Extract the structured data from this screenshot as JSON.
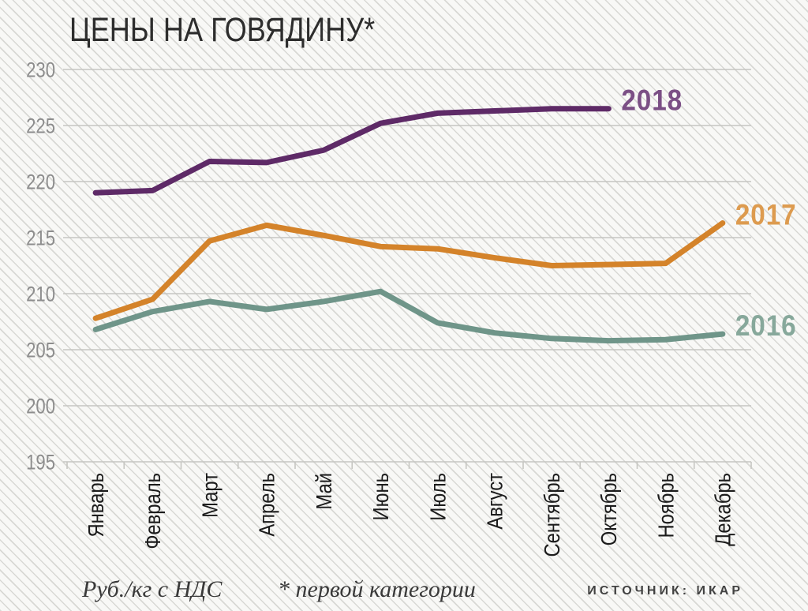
{
  "title": "ЦЕНЫ НА ГОВЯДИНУ*",
  "footer": {
    "units_note": "Руб./кг с НДС",
    "category_note": "* первой категории",
    "source": "ИСТОЧНИК: ИКАР"
  },
  "colors": {
    "grid": "#c6c6c2",
    "axis_value_text": "#8d8d8d",
    "month_text": "#1c1c1c",
    "background": "#f8f8f6",
    "hatch_line": "#e1e1de"
  },
  "chart_data": {
    "type": "line",
    "title": "ЦЕНЫ НА ГОВЯДИНУ*",
    "ylabel": "Руб./кг с НДС",
    "footnote": "* первой категории",
    "source": "ИСТОЧНИК: ИКАР",
    "ylim": [
      195,
      230
    ],
    "ytick_step": 5,
    "yticks": [
      195,
      200,
      205,
      210,
      215,
      220,
      225,
      230
    ],
    "grid": true,
    "legend_position": "line-end-labels",
    "categories": [
      "Январь",
      "Февраль",
      "Март",
      "Апрель",
      "Май",
      "Июнь",
      "Июль",
      "Август",
      "Сентябрь",
      "Октябрь",
      "Ноябрь",
      "Декабрь"
    ],
    "series": [
      {
        "name": "2018",
        "color": "#5e2a67",
        "label_color": "#7b4f85",
        "values": [
          219.0,
          219.2,
          221.8,
          221.7,
          222.8,
          225.2,
          226.1,
          226.3,
          226.5,
          226.5
        ]
      },
      {
        "name": "2017",
        "color": "#d4832a",
        "label_color": "#dd9b4f",
        "values": [
          207.8,
          209.5,
          214.7,
          216.1,
          215.2,
          214.2,
          214.0,
          213.2,
          212.5,
          212.6,
          212.7,
          216.3
        ]
      },
      {
        "name": "2016",
        "color": "#6f9589",
        "label_color": "#87a89b",
        "values": [
          206.8,
          208.4,
          209.3,
          208.6,
          209.3,
          210.2,
          207.4,
          206.5,
          206.0,
          205.8,
          205.9,
          206.4
        ]
      }
    ]
  }
}
